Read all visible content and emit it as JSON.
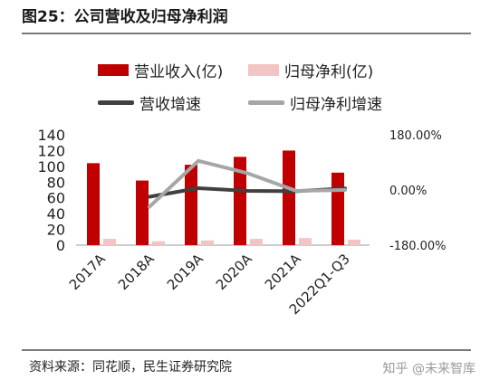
{
  "header": {
    "title": "图25：公司营收及归母净利润"
  },
  "footer": {
    "source": "资料来源：同花顺，民生证券研究院",
    "watermark": "知乎 @未来智库"
  },
  "chart_data": {
    "type": "bar",
    "categories": [
      "2017A",
      "2018A",
      "2019A",
      "2020A",
      "2021A",
      "2022Q1-Q3"
    ],
    "series": [
      {
        "name": "营业收入(亿)",
        "kind": "bar",
        "axis": "left",
        "color": "#c00000",
        "values": [
          104,
          82,
          102,
          112,
          120,
          92
        ]
      },
      {
        "name": "归母净利(亿)",
        "kind": "bar",
        "axis": "left",
        "color": "#f2c4c4",
        "values": [
          8,
          5,
          6,
          8,
          9,
          7
        ]
      },
      {
        "name": "营收增速",
        "kind": "line",
        "axis": "right",
        "color": "#404040",
        "values": [
          null,
          -0.22,
          0.06,
          -0.03,
          -0.04,
          0.05
        ]
      },
      {
        "name": "归母净利增速",
        "kind": "line",
        "axis": "right",
        "color": "#a6a6a6",
        "values": [
          null,
          -0.55,
          0.95,
          0.55,
          -0.03,
          0.0
        ]
      }
    ],
    "left_axis": {
      "min": 0,
      "max": 140,
      "ticks": [
        0,
        20,
        40,
        60,
        80,
        100,
        120,
        140
      ]
    },
    "right_axis": {
      "min": -1.8,
      "max": 1.8,
      "ticks": [
        {
          "v": 1.8,
          "label": "180.00%"
        },
        {
          "v": 0,
          "label": "0.00%"
        },
        {
          "v": -1.8,
          "label": "-180.00%"
        }
      ]
    },
    "legend_position": "top",
    "grid": false
  }
}
